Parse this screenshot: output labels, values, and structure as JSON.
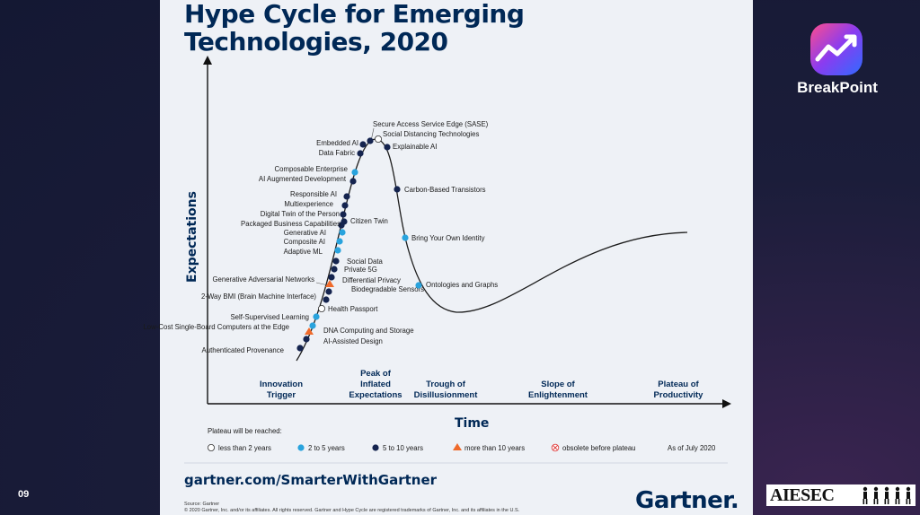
{
  "slide": {
    "page_number": "09"
  },
  "brand": {
    "name": "BreakPoint",
    "logo_icon": "rising-line-chart-icon"
  },
  "title": "Hype Cycle for Emerging Technologies, 2020",
  "diagram": {
    "axes": {
      "y": "Expectations",
      "x": "Time"
    },
    "phases": [
      {
        "lines": [
          "Innovation",
          "Trigger"
        ]
      },
      {
        "lines": [
          "Peak of",
          "Inflated",
          "Expectations"
        ]
      },
      {
        "lines": [
          "Trough of",
          "Disillusionment"
        ]
      },
      {
        "lines": [
          "Slope of",
          "Enlightenment"
        ]
      },
      {
        "lines": [
          "Plateau of",
          "Productivity"
        ]
      }
    ],
    "technologies": [
      {
        "name": "Secure Access Service Edge (SASE)",
        "status": "5-10"
      },
      {
        "name": "Social Distancing Technologies",
        "status": "<2"
      },
      {
        "name": "Embedded AI",
        "status": "5-10"
      },
      {
        "name": "Explainable AI",
        "status": "5-10"
      },
      {
        "name": "Data Fabric",
        "status": "5-10"
      },
      {
        "name": "Composable Enterprise",
        "status": "2-5"
      },
      {
        "name": "AI Augmented Development",
        "status": "5-10"
      },
      {
        "name": "Carbon-Based Transistors",
        "status": "5-10"
      },
      {
        "name": "Responsible AI",
        "status": "5-10"
      },
      {
        "name": "Multiexperience",
        "status": "5-10"
      },
      {
        "name": "Digital Twin of the Person",
        "status": "5-10"
      },
      {
        "name": "Citizen Twin",
        "status": "5-10"
      },
      {
        "name": "Packaged Business Capabilities",
        "status": "5-10"
      },
      {
        "name": "Generative AI",
        "status": "2-5"
      },
      {
        "name": "Bring Your Own Identity",
        "status": "2-5"
      },
      {
        "name": "Composite AI",
        "status": "2-5"
      },
      {
        "name": "Adaptive ML",
        "status": "2-5"
      },
      {
        "name": "Social Data",
        "status": "5-10"
      },
      {
        "name": "Private 5G",
        "status": "5-10"
      },
      {
        "name": "Generative Adversarial Networks",
        "status": "5-10"
      },
      {
        "name": "Differential Privacy",
        "status": ">10"
      },
      {
        "name": "Biodegradable Sensors",
        "status": "5-10"
      },
      {
        "name": "Ontologies and Graphs",
        "status": "2-5"
      },
      {
        "name": "2-Way BMI (Brain Machine Interface)",
        "status": "5-10"
      },
      {
        "name": "Health Passport",
        "status": "<2"
      },
      {
        "name": "Self-Supervised Learning",
        "status": "2-5"
      },
      {
        "name": "Low-Cost Single-Board Computers at the Edge",
        "status": "2-5"
      },
      {
        "name": "DNA Computing and Storage",
        "status": ">10"
      },
      {
        "name": "AI-Assisted Design",
        "status": "5-10"
      },
      {
        "name": "Authenticated Provenance",
        "status": "5-10"
      }
    ],
    "legend": {
      "title": "Plateau will be reached:",
      "items": [
        {
          "label": "less than 2 years",
          "symbol": "hollow-circle",
          "color": "#ffffff"
        },
        {
          "label": "2 to 5 years",
          "symbol": "circle",
          "color": "#29a3dd"
        },
        {
          "label": "5 to 10 years",
          "symbol": "circle",
          "color": "#15244f"
        },
        {
          "label": "more than 10 years",
          "symbol": "triangle",
          "color": "#ef6a2b"
        },
        {
          "label": "obsolete before plateau",
          "symbol": "crossed-circle",
          "color": "#e04040"
        }
      ],
      "as_of": "As of July 2020"
    }
  },
  "footer": {
    "url": "gartner.com/SmarterWithGartner",
    "source": "Source: Gartner",
    "copyright": "© 2020 Gartner, Inc. and/or its affiliates. All rights reserved. Gartner and Hype Cycle are registered trademarks of Gartner, Inc. and its affiliates in the U.S.",
    "logo": "Gartner."
  },
  "partner": {
    "name": "AIESEC",
    "icon": "people-silhouettes-icon"
  },
  "colors": {
    "navy": "#002856",
    "dark_dot": "#15244f",
    "blue_dot": "#29a3dd",
    "orange": "#ef6a2b"
  }
}
